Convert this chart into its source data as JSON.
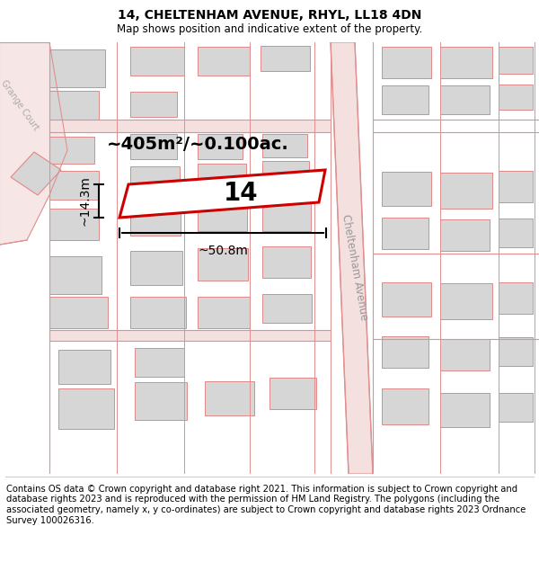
{
  "title": "14, CHELTENHAM AVENUE, RHYL, LL18 4DN",
  "subtitle": "Map shows position and indicative extent of the property.",
  "footer": "Contains OS data © Crown copyright and database right 2021. This information is subject to Crown copyright and database rights 2023 and is reproduced with the permission of HM Land Registry. The polygons (including the associated geometry, namely x, y co-ordinates) are subject to Crown copyright and database rights 2023 Ordnance Survey 100026316.",
  "map_bg": "#f2f2f2",
  "building_fill": "#d6d6d6",
  "building_edge": "#e08888",
  "road_fill": "#f5e0e0",
  "road_line": "#e09090",
  "highlight_fill": "#ffffff",
  "highlight_edge": "#cc0000",
  "street_name_1": "Cheltenham Avenue",
  "street_name_2": "Grange Court",
  "area_label": "~405m²/~0.100ac.",
  "width_label": "~50.8m",
  "height_label": "~14.3m",
  "number_label": "14",
  "title_fontsize": 10,
  "subtitle_fontsize": 8.5,
  "footer_fontsize": 7.2,
  "area_fontsize": 14,
  "number_fontsize": 20
}
